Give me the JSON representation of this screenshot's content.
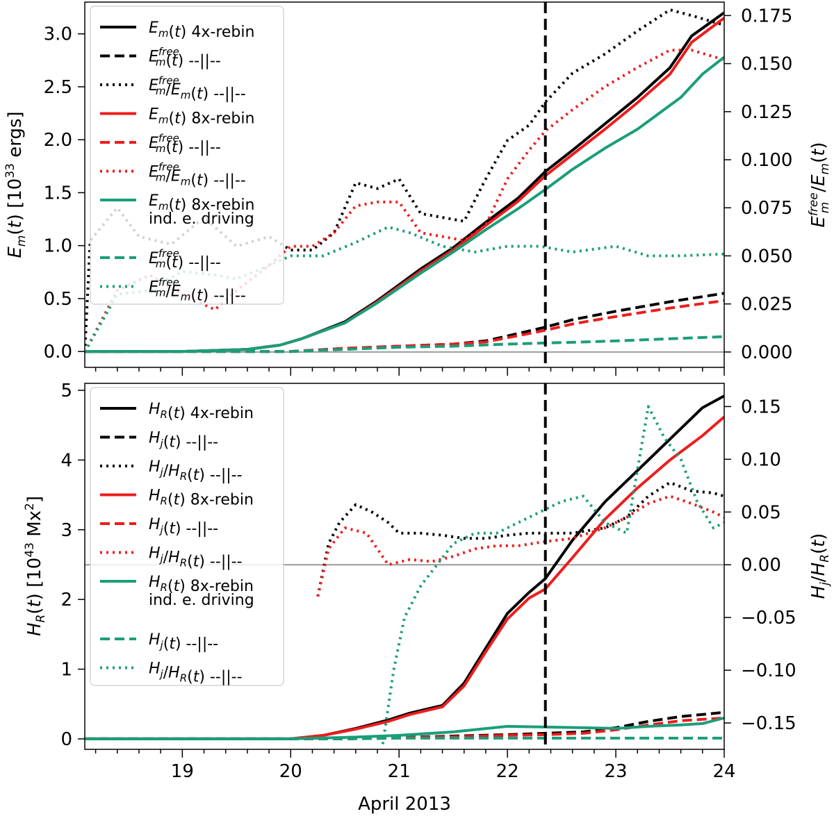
{
  "colors": {
    "black": "#000000",
    "red": "#ee1c1c",
    "teal": "#1a9e7a",
    "grid": "#999999"
  },
  "chart_data": [
    {
      "type": "line",
      "panel": "top",
      "xlabel": "",
      "ylabel_left": "E_m(t) [10^33 ergs]",
      "ylabel_right": "E_m^free/E_m(t)",
      "xlim": [
        18.1,
        24.0
      ],
      "ylim_left": [
        -0.15,
        3.3
      ],
      "ylim_right": [
        -0.008,
        0.182
      ],
      "left_ticks": [
        "0.0",
        "0.5",
        "1.0",
        "1.5",
        "2.0",
        "2.5",
        "3.0"
      ],
      "left_tick_values": [
        0,
        0.5,
        1.0,
        1.5,
        2.0,
        2.5,
        3.0
      ],
      "right_ticks": [
        "0.000",
        "0.025",
        "0.050",
        "0.075",
        "0.100",
        "0.125",
        "0.150",
        "0.175"
      ],
      "right_tick_values": [
        0,
        0.025,
        0.05,
        0.075,
        0.1,
        0.125,
        0.15,
        0.175
      ],
      "vline_x": 22.35,
      "hline_right_y": 0,
      "legend": [
        {
          "label": "E_m(t) 4x-rebin",
          "color": "black",
          "style": "solid"
        },
        {
          "label": "E_m^free(t) --||--",
          "color": "black",
          "style": "dashed"
        },
        {
          "label": "E_m^free/E_m(t) --||--",
          "color": "black",
          "style": "dotted"
        },
        {
          "label": "E_m(t) 8x-rebin",
          "color": "red",
          "style": "solid"
        },
        {
          "label": "E_m^free(t) --||--",
          "color": "red",
          "style": "dashed"
        },
        {
          "label": "E_m^free/E_m(t) --||--",
          "color": "red",
          "style": "dotted"
        },
        {
          "label": "E_m(t) 8x-rebin ind. e. driving",
          "color": "teal",
          "style": "solid"
        },
        {
          "label": "E_m^free(t) --||--",
          "color": "teal",
          "style": "dashed"
        },
        {
          "label": "E_m^free/E_m(t) --||--",
          "color": "teal",
          "style": "dotted"
        }
      ],
      "series": [
        {
          "name": "Em 4x-rebin",
          "color": "black",
          "style": "solid",
          "axis": "left",
          "x": [
            18.1,
            19.0,
            19.6,
            19.9,
            20.1,
            20.5,
            20.8,
            21.2,
            21.5,
            21.8,
            22.1,
            22.35,
            22.6,
            22.9,
            23.2,
            23.5,
            23.7,
            24.0
          ],
          "y": [
            0,
            0,
            0.02,
            0.06,
            0.12,
            0.28,
            0.48,
            0.78,
            0.98,
            1.22,
            1.45,
            1.7,
            1.9,
            2.15,
            2.4,
            2.68,
            2.98,
            3.2
          ]
        },
        {
          "name": "Em free 4x-rebin",
          "color": "black",
          "style": "dashed",
          "axis": "left",
          "x": [
            18.1,
            20.0,
            20.5,
            21.0,
            21.5,
            21.8,
            22.1,
            22.35,
            22.6,
            23.0,
            23.5,
            24.0
          ],
          "y": [
            0,
            0,
            0.03,
            0.05,
            0.07,
            0.1,
            0.17,
            0.23,
            0.3,
            0.38,
            0.47,
            0.55
          ]
        },
        {
          "name": "ratio 4x-rebin",
          "color": "black",
          "style": "dotted",
          "axis": "right",
          "x": [
            18.1,
            18.15,
            18.4,
            18.6,
            18.9,
            19.2,
            19.5,
            19.8,
            20.0,
            20.2,
            20.4,
            20.6,
            20.8,
            21.0,
            21.2,
            21.4,
            21.6,
            21.8,
            22.0,
            22.2,
            22.35,
            22.6,
            22.9,
            23.2,
            23.5,
            23.7,
            24.0
          ],
          "y": [
            0.0,
            0.058,
            0.075,
            0.06,
            0.056,
            0.07,
            0.055,
            0.06,
            0.053,
            0.053,
            0.062,
            0.088,
            0.085,
            0.09,
            0.072,
            0.07,
            0.068,
            0.09,
            0.11,
            0.118,
            0.13,
            0.145,
            0.155,
            0.167,
            0.178,
            0.175,
            0.17
          ]
        },
        {
          "name": "Em 8x-rebin",
          "color": "red",
          "style": "solid",
          "axis": "left",
          "x": [
            18.1,
            19.0,
            19.6,
            19.9,
            20.1,
            20.5,
            20.8,
            21.2,
            21.5,
            21.8,
            22.1,
            22.35,
            22.6,
            22.9,
            23.2,
            23.5,
            23.7,
            24.0
          ],
          "y": [
            0,
            0,
            0.02,
            0.06,
            0.12,
            0.27,
            0.47,
            0.76,
            0.96,
            1.19,
            1.42,
            1.66,
            1.86,
            2.1,
            2.35,
            2.62,
            2.92,
            3.15
          ]
        },
        {
          "name": "Em free 8x-rebin",
          "color": "red",
          "style": "dashed",
          "axis": "left",
          "x": [
            18.1,
            20.0,
            20.5,
            21.0,
            21.5,
            21.8,
            22.1,
            22.35,
            22.6,
            23.0,
            23.5,
            24.0
          ],
          "y": [
            0,
            0,
            0.03,
            0.05,
            0.07,
            0.09,
            0.15,
            0.2,
            0.26,
            0.33,
            0.41,
            0.48
          ]
        },
        {
          "name": "ratio 8x-rebin",
          "color": "red",
          "style": "dotted",
          "axis": "right",
          "x": [
            18.1,
            18.4,
            18.7,
            19.0,
            19.3,
            19.5,
            19.8,
            20.0,
            20.2,
            20.4,
            20.6,
            20.8,
            21.0,
            21.2,
            21.4,
            21.6,
            21.8,
            22.0,
            22.2,
            22.35,
            22.6,
            22.9,
            23.2,
            23.5,
            23.7,
            24.0
          ],
          "y": [
            0.0,
            0.032,
            0.04,
            0.03,
            0.022,
            0.032,
            0.045,
            0.055,
            0.055,
            0.062,
            0.076,
            0.078,
            0.078,
            0.062,
            0.06,
            0.058,
            0.066,
            0.09,
            0.105,
            0.115,
            0.126,
            0.138,
            0.148,
            0.157,
            0.157,
            0.152
          ]
        },
        {
          "name": "Em 8x-rebin ind. e. driving",
          "color": "teal",
          "style": "solid",
          "axis": "left",
          "x": [
            18.1,
            19.0,
            19.6,
            19.9,
            20.1,
            20.5,
            20.8,
            21.2,
            21.5,
            21.8,
            22.1,
            22.35,
            22.6,
            22.9,
            23.2,
            23.4,
            23.6,
            23.8,
            24.0
          ],
          "y": [
            0,
            0,
            0.02,
            0.06,
            0.12,
            0.27,
            0.46,
            0.74,
            0.94,
            1.15,
            1.35,
            1.53,
            1.72,
            1.92,
            2.1,
            2.25,
            2.4,
            2.62,
            2.78
          ]
        },
        {
          "name": "Em free ind. e. driving",
          "color": "teal",
          "style": "dashed",
          "axis": "left",
          "x": [
            18.1,
            20.0,
            20.5,
            21.0,
            21.5,
            22.0,
            22.35,
            22.7,
            23.0,
            23.5,
            24.0
          ],
          "y": [
            0,
            0,
            0.02,
            0.04,
            0.05,
            0.07,
            0.08,
            0.09,
            0.1,
            0.12,
            0.14
          ]
        },
        {
          "name": "ratio ind. e. driving",
          "color": "teal",
          "style": "dotted",
          "axis": "right",
          "x": [
            18.1,
            18.4,
            18.7,
            19.0,
            19.3,
            19.5,
            19.8,
            20.0,
            20.3,
            20.6,
            20.9,
            21.1,
            21.4,
            21.7,
            22.0,
            22.3,
            22.6,
            23.0,
            23.3,
            23.6,
            24.0
          ],
          "y": [
            0.0,
            0.03,
            0.032,
            0.042,
            0.04,
            0.038,
            0.045,
            0.05,
            0.05,
            0.057,
            0.065,
            0.062,
            0.055,
            0.052,
            0.055,
            0.055,
            0.052,
            0.055,
            0.05,
            0.05,
            0.051
          ]
        }
      ]
    },
    {
      "type": "line",
      "panel": "bottom",
      "xlabel": "April 2013",
      "ylabel_left": "H_R(t) [10^43 Mx^2]",
      "ylabel_right": "H_j/H_R(t)",
      "xlim": [
        18.1,
        24.0
      ],
      "ylim_left": [
        -0.15,
        5.1
      ],
      "ylim_right": [
        -0.175,
        0.172
      ],
      "x_ticks": [
        "19",
        "20",
        "21",
        "22",
        "23",
        "24"
      ],
      "x_tick_values": [
        19,
        20,
        21,
        22,
        23,
        24
      ],
      "left_ticks": [
        "0",
        "1",
        "2",
        "3",
        "4",
        "5"
      ],
      "left_tick_values": [
        0,
        1,
        2,
        3,
        4,
        5
      ],
      "right_ticks": [
        "−0.15",
        "−0.10",
        "−0.05",
        "0.00",
        "0.05",
        "0.10",
        "0.15"
      ],
      "right_tick_values": [
        -0.15,
        -0.1,
        -0.05,
        0,
        0.05,
        0.1,
        0.15
      ],
      "vline_x": 22.35,
      "hline_right_y": 0,
      "legend": [
        {
          "label": "H_R(t) 4x-rebin",
          "color": "black",
          "style": "solid"
        },
        {
          "label": "H_j(t) --||--",
          "color": "black",
          "style": "dashed"
        },
        {
          "label": "H_j/H_R(t) --||--",
          "color": "black",
          "style": "dotted"
        },
        {
          "label": "H_R(t) 8x-rebin",
          "color": "red",
          "style": "solid"
        },
        {
          "label": "H_j(t) --||--",
          "color": "red",
          "style": "dashed"
        },
        {
          "label": "H_j/H_R(t) --||--",
          "color": "red",
          "style": "dotted"
        },
        {
          "label": "H_R(t) 8x-rebin ind. e. driving",
          "color": "teal",
          "style": "solid"
        },
        {
          "label": "H_j(t) --||--",
          "color": "teal",
          "style": "dashed"
        },
        {
          "label": "H_j/H_R(t) --||--",
          "color": "teal",
          "style": "dotted"
        }
      ],
      "series": [
        {
          "name": "HR 4x-rebin",
          "color": "black",
          "style": "solid",
          "axis": "left",
          "x": [
            18.1,
            20.0,
            20.3,
            20.6,
            20.9,
            21.1,
            21.4,
            21.6,
            21.8,
            22.0,
            22.2,
            22.35,
            22.6,
            22.9,
            23.2,
            23.5,
            23.8,
            24.0
          ],
          "y": [
            0,
            0,
            0.05,
            0.15,
            0.27,
            0.37,
            0.48,
            0.8,
            1.3,
            1.8,
            2.1,
            2.3,
            2.85,
            3.4,
            3.85,
            4.3,
            4.75,
            4.92
          ]
        },
        {
          "name": "Hj 4x-rebin",
          "color": "black",
          "style": "dashed",
          "axis": "left",
          "x": [
            18.1,
            20.5,
            21.0,
            21.5,
            22.0,
            22.35,
            22.7,
            23.0,
            23.3,
            23.6,
            24.0
          ],
          "y": [
            0,
            0,
            0.02,
            0.04,
            0.06,
            0.08,
            0.1,
            0.16,
            0.25,
            0.32,
            0.38
          ]
        },
        {
          "name": "ratio 4x-rebin",
          "color": "black",
          "style": "dotted",
          "axis": "right",
          "x": [
            20.25,
            20.35,
            20.45,
            20.6,
            20.75,
            20.9,
            21.0,
            21.2,
            21.4,
            21.6,
            21.8,
            22.0,
            22.2,
            22.35,
            22.6,
            22.9,
            23.1,
            23.3,
            23.5,
            23.7,
            23.9,
            24.0
          ],
          "y": [
            -0.03,
            0.02,
            0.04,
            0.057,
            0.05,
            0.04,
            0.03,
            0.03,
            0.028,
            0.025,
            0.025,
            0.028,
            0.03,
            0.03,
            0.03,
            0.035,
            0.045,
            0.065,
            0.078,
            0.07,
            0.068,
            0.065
          ]
        },
        {
          "name": "HR 8x-rebin",
          "color": "red",
          "style": "solid",
          "axis": "left",
          "x": [
            18.1,
            20.0,
            20.3,
            20.6,
            20.9,
            21.1,
            21.4,
            21.6,
            21.8,
            22.0,
            22.2,
            22.35,
            22.6,
            22.9,
            23.2,
            23.5,
            23.8,
            24.0
          ],
          "y": [
            0,
            0,
            0.05,
            0.14,
            0.25,
            0.35,
            0.46,
            0.76,
            1.25,
            1.72,
            2.02,
            2.15,
            2.6,
            3.15,
            3.6,
            4.0,
            4.35,
            4.62
          ]
        },
        {
          "name": "Hj 8x-rebin",
          "color": "red",
          "style": "dashed",
          "axis": "left",
          "x": [
            18.1,
            20.5,
            21.0,
            21.5,
            22.0,
            22.35,
            22.7,
            23.0,
            23.3,
            23.6,
            24.0
          ],
          "y": [
            0,
            0,
            0.02,
            0.03,
            0.05,
            0.06,
            0.08,
            0.13,
            0.2,
            0.26,
            0.3
          ]
        },
        {
          "name": "ratio 8x-rebin",
          "color": "red",
          "style": "dotted",
          "axis": "right",
          "x": [
            20.25,
            20.35,
            20.5,
            20.7,
            20.9,
            21.1,
            21.3,
            21.5,
            21.7,
            21.9,
            22.1,
            22.35,
            22.6,
            22.9,
            23.1,
            23.3,
            23.5,
            23.7,
            23.9,
            24.0
          ],
          "y": [
            -0.03,
            0.015,
            0.035,
            0.03,
            0.0,
            0.005,
            0.003,
            0.008,
            0.015,
            0.018,
            0.018,
            0.022,
            0.025,
            0.035,
            0.045,
            0.058,
            0.065,
            0.058,
            0.05,
            0.045
          ]
        },
        {
          "name": "HR ind. e. driving",
          "color": "teal",
          "style": "solid",
          "axis": "left",
          "x": [
            18.1,
            20.0,
            20.5,
            21.0,
            21.5,
            22.0,
            22.35,
            22.7,
            23.0,
            23.3,
            23.6,
            23.8,
            24.0
          ],
          "y": [
            0,
            0,
            0.02,
            0.05,
            0.1,
            0.18,
            0.17,
            0.16,
            0.15,
            0.18,
            0.2,
            0.22,
            0.3
          ]
        },
        {
          "name": "Hj ind. e. driving",
          "color": "teal",
          "style": "dashed",
          "axis": "left",
          "x": [
            18.1,
            20.5,
            21.0,
            21.5,
            22.0,
            22.35,
            22.7,
            23.0,
            23.5,
            24.0
          ],
          "y": [
            0,
            0,
            0.01,
            0.01,
            0.01,
            0.01,
            0.01,
            0.01,
            0.01,
            0.01
          ]
        },
        {
          "name": "ratio ind. e. driving",
          "color": "teal",
          "style": "dotted",
          "axis": "right",
          "x": [
            20.85,
            20.95,
            21.05,
            21.2,
            21.35,
            21.5,
            21.7,
            21.9,
            22.1,
            22.3,
            22.5,
            22.7,
            22.9,
            23.1,
            23.3,
            23.45,
            23.6,
            23.75,
            23.9,
            24.0
          ],
          "y": [
            -0.17,
            -0.1,
            -0.05,
            -0.02,
            0.0,
            0.02,
            0.03,
            0.03,
            0.04,
            0.05,
            0.06,
            0.065,
            0.04,
            0.03,
            0.15,
            0.12,
            0.1,
            0.06,
            0.035,
            0.04
          ]
        }
      ]
    }
  ]
}
